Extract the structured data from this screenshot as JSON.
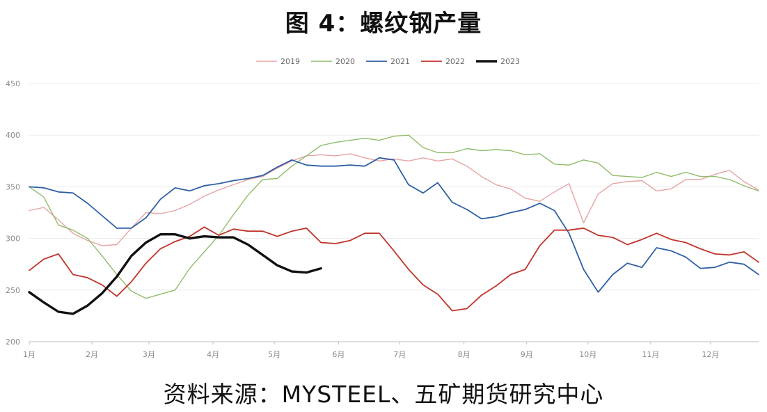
{
  "chart_data": {
    "type": "line",
    "title": "图 4：螺纹钢产量",
    "source": "资料来源：MYSTEEL、五矿期货研究中心",
    "ylim": [
      200,
      450
    ],
    "yticks": [
      200,
      250,
      300,
      350,
      400,
      450
    ],
    "xlim": [
      0,
      50
    ],
    "month_ticks": [
      {
        "label": "1月",
        "week": 0
      },
      {
        "label": "2月",
        "week": 4.3
      },
      {
        "label": "3月",
        "week": 8.2
      },
      {
        "label": "4月",
        "week": 12.6
      },
      {
        "label": "5月",
        "week": 16.8
      },
      {
        "label": "6月",
        "week": 21.2
      },
      {
        "label": "7月",
        "week": 25.4
      },
      {
        "label": "8月",
        "week": 29.8
      },
      {
        "label": "9月",
        "week": 34.1
      },
      {
        "label": "10月",
        "week": 38.3
      },
      {
        "label": "11月",
        "week": 42.6
      },
      {
        "label": "12月",
        "week": 46.7
      }
    ],
    "grid": "horizontal",
    "legend_position": "top",
    "series": [
      {
        "name": "2019",
        "color": "#e8a3a3",
        "width": 1.4,
        "points": [
          [
            0,
            327
          ],
          [
            1,
            330
          ],
          [
            2,
            318
          ],
          [
            3,
            305
          ],
          [
            4,
            298
          ],
          [
            5,
            293
          ],
          [
            6,
            294
          ],
          [
            7,
            310
          ],
          [
            8,
            325
          ],
          [
            9,
            324
          ],
          [
            10,
            327
          ],
          [
            11,
            333
          ],
          [
            12,
            341
          ],
          [
            13,
            347
          ],
          [
            14,
            352
          ],
          [
            15,
            357
          ],
          [
            16,
            360
          ],
          [
            17,
            368
          ],
          [
            18,
            375
          ],
          [
            19,
            380
          ],
          [
            20,
            381
          ],
          [
            21,
            380
          ],
          [
            22,
            382
          ],
          [
            23,
            378
          ],
          [
            24,
            375
          ],
          [
            25,
            377
          ],
          [
            26,
            375
          ],
          [
            27,
            378
          ],
          [
            28,
            375
          ],
          [
            29,
            377
          ],
          [
            30,
            370
          ],
          [
            31,
            360
          ],
          [
            32,
            352
          ],
          [
            33,
            348
          ],
          [
            34,
            339
          ],
          [
            35,
            336
          ],
          [
            36,
            345
          ],
          [
            37,
            353
          ],
          [
            38,
            315
          ],
          [
            39,
            343
          ],
          [
            40,
            353
          ],
          [
            41,
            355
          ],
          [
            42,
            356
          ],
          [
            43,
            346
          ],
          [
            44,
            348
          ],
          [
            45,
            357
          ],
          [
            46,
            357
          ],
          [
            47,
            362
          ],
          [
            48,
            366
          ],
          [
            49,
            355
          ],
          [
            50,
            347
          ]
        ]
      },
      {
        "name": "2020",
        "color": "#8fbc6a",
        "width": 1.4,
        "points": [
          [
            0,
            350
          ],
          [
            1,
            340
          ],
          [
            2,
            313
          ],
          [
            3,
            308
          ],
          [
            4,
            300
          ],
          [
            5,
            283
          ],
          [
            6,
            265
          ],
          [
            7,
            249
          ],
          [
            8,
            242
          ],
          [
            9,
            246
          ],
          [
            10,
            250
          ],
          [
            11,
            271
          ],
          [
            12,
            287
          ],
          [
            13,
            303
          ],
          [
            14,
            323
          ],
          [
            15,
            342
          ],
          [
            16,
            357
          ],
          [
            17,
            358
          ],
          [
            18,
            370
          ],
          [
            19,
            380
          ],
          [
            20,
            390
          ],
          [
            21,
            393
          ],
          [
            22,
            395
          ],
          [
            23,
            397
          ],
          [
            24,
            395
          ],
          [
            25,
            399
          ],
          [
            26,
            400
          ],
          [
            27,
            388
          ],
          [
            28,
            383
          ],
          [
            29,
            383
          ],
          [
            30,
            387
          ],
          [
            31,
            385
          ],
          [
            32,
            386
          ],
          [
            33,
            385
          ],
          [
            34,
            381
          ],
          [
            35,
            382
          ],
          [
            36,
            372
          ],
          [
            37,
            371
          ],
          [
            38,
            376
          ],
          [
            39,
            373
          ],
          [
            40,
            361
          ],
          [
            41,
            360
          ],
          [
            42,
            359
          ],
          [
            43,
            364
          ],
          [
            44,
            360
          ],
          [
            45,
            364
          ],
          [
            46,
            360
          ],
          [
            47,
            360
          ],
          [
            48,
            357
          ],
          [
            49,
            351
          ],
          [
            50,
            346
          ]
        ]
      },
      {
        "name": "2021",
        "color": "#2e5fa6",
        "width": 1.8,
        "points": [
          [
            0,
            350
          ],
          [
            1,
            349
          ],
          [
            2,
            345
          ],
          [
            3,
            344
          ],
          [
            4,
            334
          ],
          [
            5,
            322
          ],
          [
            6,
            310
          ],
          [
            7,
            310
          ],
          [
            8,
            320
          ],
          [
            9,
            338
          ],
          [
            10,
            349
          ],
          [
            11,
            346
          ],
          [
            12,
            351
          ],
          [
            13,
            353
          ],
          [
            14,
            356
          ],
          [
            15,
            358
          ],
          [
            16,
            361
          ],
          [
            17,
            369
          ],
          [
            18,
            376
          ],
          [
            19,
            371
          ],
          [
            20,
            370
          ],
          [
            21,
            370
          ],
          [
            22,
            371
          ],
          [
            23,
            370
          ],
          [
            24,
            378
          ],
          [
            25,
            376
          ],
          [
            26,
            352
          ],
          [
            27,
            344
          ],
          [
            28,
            354
          ],
          [
            29,
            335
          ],
          [
            30,
            328
          ],
          [
            31,
            319
          ],
          [
            32,
            321
          ],
          [
            33,
            325
          ],
          [
            34,
            328
          ],
          [
            35,
            334
          ],
          [
            36,
            327
          ],
          [
            37,
            305
          ],
          [
            38,
            270
          ],
          [
            39,
            248
          ],
          [
            40,
            265
          ],
          [
            41,
            276
          ],
          [
            42,
            272
          ],
          [
            43,
            291
          ],
          [
            44,
            288
          ],
          [
            45,
            282
          ],
          [
            46,
            271
          ],
          [
            47,
            272
          ],
          [
            48,
            277
          ],
          [
            49,
            275
          ],
          [
            50,
            265
          ]
        ]
      },
      {
        "name": "2022",
        "color": "#c0332a",
        "width": 1.8,
        "points": [
          [
            0,
            269
          ],
          [
            1,
            280
          ],
          [
            2,
            285
          ],
          [
            3,
            265
          ],
          [
            4,
            262
          ],
          [
            5,
            255
          ],
          [
            6,
            244
          ],
          [
            7,
            258
          ],
          [
            8,
            276
          ],
          [
            9,
            290
          ],
          [
            10,
            297
          ],
          [
            11,
            302
          ],
          [
            12,
            311
          ],
          [
            13,
            303
          ],
          [
            14,
            309
          ],
          [
            15,
            307
          ],
          [
            16,
            307
          ],
          [
            17,
            302
          ],
          [
            18,
            307
          ],
          [
            19,
            310
          ],
          [
            20,
            296
          ],
          [
            21,
            295
          ],
          [
            22,
            298
          ],
          [
            23,
            305
          ],
          [
            24,
            305
          ],
          [
            25,
            288
          ],
          [
            26,
            270
          ],
          [
            27,
            255
          ],
          [
            28,
            246
          ],
          [
            29,
            230
          ],
          [
            30,
            232
          ],
          [
            31,
            245
          ],
          [
            32,
            254
          ],
          [
            33,
            265
          ],
          [
            34,
            270
          ],
          [
            35,
            293
          ],
          [
            36,
            308
          ],
          [
            37,
            308
          ],
          [
            38,
            310
          ],
          [
            39,
            303
          ],
          [
            40,
            301
          ],
          [
            41,
            294
          ],
          [
            42,
            299
          ],
          [
            43,
            305
          ],
          [
            44,
            299
          ],
          [
            45,
            296
          ],
          [
            46,
            290
          ],
          [
            47,
            285
          ],
          [
            48,
            284
          ],
          [
            49,
            287
          ],
          [
            50,
            277
          ]
        ]
      },
      {
        "name": "2023",
        "color": "#111111",
        "width": 3.4,
        "points": [
          [
            0,
            248
          ],
          [
            1,
            238
          ],
          [
            2,
            229
          ],
          [
            3,
            227
          ],
          [
            4,
            235
          ],
          [
            5,
            247
          ],
          [
            6,
            263
          ],
          [
            7,
            283
          ],
          [
            8,
            296
          ],
          [
            9,
            304
          ],
          [
            10,
            304
          ],
          [
            11,
            300
          ],
          [
            12,
            302
          ],
          [
            13,
            301
          ],
          [
            14,
            301
          ],
          [
            15,
            294
          ],
          [
            16,
            284
          ],
          [
            17,
            274
          ],
          [
            18,
            268
          ],
          [
            19,
            267
          ],
          [
            20,
            271
          ]
        ]
      }
    ]
  }
}
